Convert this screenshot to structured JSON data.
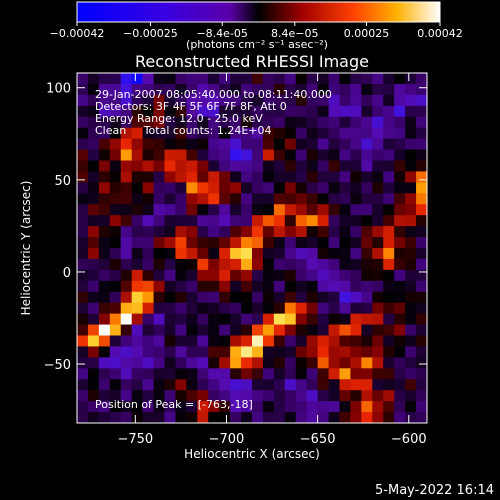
{
  "chart_data": {
    "type": "heatmap",
    "title": "Reconstructed RHESSI Image",
    "xlabel": "Heliocentric X (arcsec)",
    "ylabel": "Heliocentric Y (arcsec)",
    "xlim": [
      -782,
      -590
    ],
    "ylim": [
      -82,
      108
    ],
    "xticks": [
      -750,
      -700,
      -650,
      -600
    ],
    "yticks": [
      -50,
      0,
      50,
      100
    ],
    "grid": false,
    "colorbar": {
      "position": "top",
      "range": [
        -0.00042,
        0.00042
      ],
      "ticks": [
        {
          "value": -0.00042,
          "label": "-0.00042"
        },
        {
          "value": -0.00025,
          "label": "-0.00025"
        },
        {
          "value": -8.4e-05,
          "label": "-8.4e-05"
        },
        {
          "value": 8.4e-05,
          "label": "8.4e-05"
        },
        {
          "value": 0.00025,
          "label": "0.00025"
        },
        {
          "value": 0.00042,
          "label": "0.00042"
        }
      ],
      "units_label": "(photons cm⁻² s⁻¹ asec⁻²)"
    },
    "annotations": [
      "29-Jan-2007 08:05:40.000 to 08:11:40.000",
      "Detectors: 3F 4F 5F 6F 7F 8F, Att 0",
      "Energy Range: 12.0 - 25.0 keV",
      "Clean     Total counts: 1.24E+04"
    ],
    "peak_label": "Position of Peak = [-763,-18]",
    "grid_shape": [
      32,
      32
    ],
    "hotspots": [
      {
        "x": -763,
        "y": -25,
        "value": 0.00042
      },
      {
        "x": -757,
        "y": -12,
        "value": 0.0003
      },
      {
        "x": -745,
        "y": 72,
        "value": 0.00025
      },
      {
        "x": -749,
        "y": 58,
        "value": 0.00022
      },
      {
        "x": -727,
        "y": 43,
        "value": 0.0003
      },
      {
        "x": -713,
        "y": 10,
        "value": 0.00028
      },
      {
        "x": -687,
        "y": 12,
        "value": 0.0003
      },
      {
        "x": -677,
        "y": 22,
        "value": 0.0003
      },
      {
        "x": -652,
        "y": 22,
        "value": 0.00035
      },
      {
        "x": -600,
        "y": 35,
        "value": 0.0004
      },
      {
        "x": -603,
        "y": 10,
        "value": 0.0003
      },
      {
        "x": -683,
        "y": -40,
        "value": 0.00035
      },
      {
        "x": -670,
        "y": -35,
        "value": 0.0003
      },
      {
        "x": -635,
        "y": -48,
        "value": 0.0003
      },
      {
        "x": -632,
        "y": -22,
        "value": 0.0003
      },
      {
        "x": -612,
        "y": -40,
        "value": 0.00025
      },
      {
        "x": -632,
        "y": -70,
        "value": 0.00025
      },
      {
        "x": -722,
        "y": -72,
        "value": 0.0002
      },
      {
        "x": -735,
        "y": -45,
        "value": 0.00018
      },
      {
        "x": -667,
        "y": 60,
        "value": 0.00018
      },
      {
        "x": -712,
        "y": 55,
        "value": 0.00018
      },
      {
        "x": -760,
        "y": 30,
        "value": 0.00015
      },
      {
        "x": -775,
        "y": 55,
        "value": 0.00015
      }
    ],
    "coldspots": [
      {
        "x": -685,
        "y": 70,
        "value": -0.0003
      },
      {
        "x": -762,
        "y": 105,
        "value": -0.0003
      },
      {
        "x": -718,
        "y": 95,
        "value": -0.00025
      },
      {
        "x": -735,
        "y": -50,
        "value": -0.0003
      },
      {
        "x": -750,
        "y": -40,
        "value": -0.00025
      },
      {
        "x": -700,
        "y": -55,
        "value": -0.00025
      },
      {
        "x": -640,
        "y": 95,
        "value": -0.0002
      },
      {
        "x": -645,
        "y": -5,
        "value": -0.0002
      },
      {
        "x": -705,
        "y": 35,
        "value": -0.0002
      },
      {
        "x": -610,
        "y": 80,
        "value": -0.0002
      },
      {
        "x": -740,
        "y": 25,
        "value": -0.00015
      },
      {
        "x": -665,
        "y": -78,
        "value": -0.00015
      }
    ]
  },
  "footer_timestamp": "5-May-2022 16:14"
}
